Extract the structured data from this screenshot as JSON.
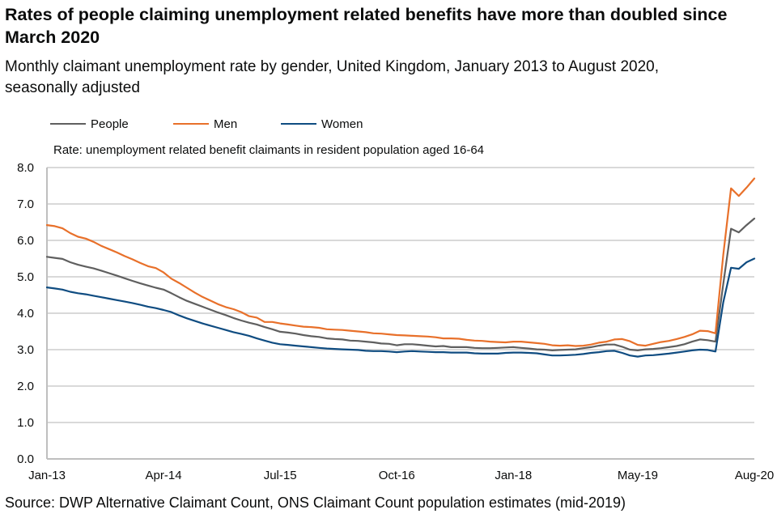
{
  "header": {
    "title": "Rates of people claiming unemployment related benefits have more than doubled since March 2020",
    "subtitle": "Monthly claimant unemployment rate by gender, United Kingdom, January 2013 to August 2020, seasonally adjusted"
  },
  "source": "Source: DWP Alternative Claimant Count, ONS Claimant Count population estimates (mid-2019)",
  "chart_data": {
    "type": "line",
    "title": "Rates of people claiming unemployment related benefits have more than doubled since March 2020",
    "subtitle": "Monthly claimant unemployment rate by gender, United Kingdom, January 2013 to August 2020, seasonally adjusted",
    "xlabel": "",
    "ylabel": "Rate: unemployment related benefit claimants in resident population aged 16-64",
    "x_start": "Jan-2013",
    "x_end": "Aug-2020",
    "x_frequency": "monthly",
    "x_ticks": [
      {
        "label": "Jan-13",
        "index": 0
      },
      {
        "label": "Apr-14",
        "index": 15
      },
      {
        "label": "Jul-15",
        "index": 30
      },
      {
        "label": "Oct-16",
        "index": 45
      },
      {
        "label": "Jan-18",
        "index": 60
      },
      {
        "label": "May-19",
        "index": 76
      },
      {
        "label": "Aug-20",
        "index": 91
      }
    ],
    "y_ticks": [
      "0.0",
      "1.0",
      "2.0",
      "3.0",
      "4.0",
      "5.0",
      "6.0",
      "7.0",
      "8.0"
    ],
    "ylim": [
      0,
      8
    ],
    "grid": true,
    "legend_position": "top-left",
    "series": [
      {
        "name": "People",
        "color": "#5f5f5f",
        "values": [
          5.55,
          5.52,
          5.49,
          5.4,
          5.33,
          5.28,
          5.23,
          5.17,
          5.1,
          5.03,
          4.96,
          4.89,
          4.82,
          4.76,
          4.7,
          4.65,
          4.55,
          4.44,
          4.34,
          4.26,
          4.18,
          4.1,
          4.02,
          3.95,
          3.87,
          3.8,
          3.74,
          3.69,
          3.62,
          3.56,
          3.49,
          3.47,
          3.44,
          3.4,
          3.37,
          3.35,
          3.31,
          3.29,
          3.28,
          3.25,
          3.24,
          3.22,
          3.2,
          3.17,
          3.16,
          3.12,
          3.15,
          3.15,
          3.13,
          3.11,
          3.09,
          3.1,
          3.07,
          3.07,
          3.07,
          3.05,
          3.04,
          3.04,
          3.05,
          3.06,
          3.07,
          3.05,
          3.03,
          3.01,
          3.0,
          2.98,
          2.99,
          3.0,
          3.01,
          3.04,
          3.07,
          3.11,
          3.14,
          3.14,
          3.08,
          3.0,
          2.98,
          3.01,
          3.02,
          3.04,
          3.07,
          3.1,
          3.15,
          3.22,
          3.28,
          3.26,
          3.22,
          4.8,
          6.32,
          6.22,
          6.42,
          6.6
        ]
      },
      {
        "name": "Men",
        "color": "#e8702a",
        "values": [
          6.42,
          6.39,
          6.33,
          6.2,
          6.1,
          6.05,
          5.96,
          5.85,
          5.76,
          5.67,
          5.57,
          5.48,
          5.38,
          5.29,
          5.24,
          5.12,
          4.95,
          4.83,
          4.7,
          4.57,
          4.45,
          4.35,
          4.25,
          4.17,
          4.11,
          4.03,
          3.92,
          3.88,
          3.76,
          3.76,
          3.72,
          3.69,
          3.66,
          3.63,
          3.62,
          3.6,
          3.56,
          3.55,
          3.54,
          3.52,
          3.5,
          3.48,
          3.45,
          3.44,
          3.42,
          3.4,
          3.39,
          3.38,
          3.37,
          3.36,
          3.34,
          3.31,
          3.31,
          3.3,
          3.27,
          3.25,
          3.24,
          3.22,
          3.21,
          3.2,
          3.22,
          3.22,
          3.2,
          3.18,
          3.16,
          3.12,
          3.11,
          3.12,
          3.1,
          3.11,
          3.14,
          3.19,
          3.22,
          3.28,
          3.29,
          3.23,
          3.13,
          3.11,
          3.16,
          3.21,
          3.24,
          3.29,
          3.35,
          3.42,
          3.52,
          3.51,
          3.45,
          5.6,
          7.43,
          7.22,
          7.45,
          7.7
        ]
      },
      {
        "name": "Women",
        "color": "#0f4c81",
        "values": [
          4.71,
          4.68,
          4.65,
          4.59,
          4.55,
          4.52,
          4.48,
          4.44,
          4.4,
          4.36,
          4.32,
          4.28,
          4.23,
          4.18,
          4.14,
          4.09,
          4.03,
          3.94,
          3.86,
          3.79,
          3.72,
          3.66,
          3.6,
          3.54,
          3.48,
          3.43,
          3.38,
          3.31,
          3.25,
          3.19,
          3.15,
          3.13,
          3.11,
          3.09,
          3.07,
          3.05,
          3.03,
          3.02,
          3.01,
          3.0,
          2.99,
          2.97,
          2.96,
          2.96,
          2.95,
          2.93,
          2.95,
          2.96,
          2.95,
          2.94,
          2.93,
          2.93,
          2.92,
          2.92,
          2.92,
          2.9,
          2.89,
          2.89,
          2.89,
          2.91,
          2.92,
          2.92,
          2.91,
          2.9,
          2.87,
          2.84,
          2.84,
          2.85,
          2.86,
          2.88,
          2.91,
          2.93,
          2.96,
          2.97,
          2.91,
          2.84,
          2.81,
          2.84,
          2.85,
          2.87,
          2.89,
          2.92,
          2.95,
          2.98,
          3.0,
          2.99,
          2.95,
          4.3,
          5.25,
          5.22,
          5.4,
          5.5
        ]
      }
    ]
  }
}
